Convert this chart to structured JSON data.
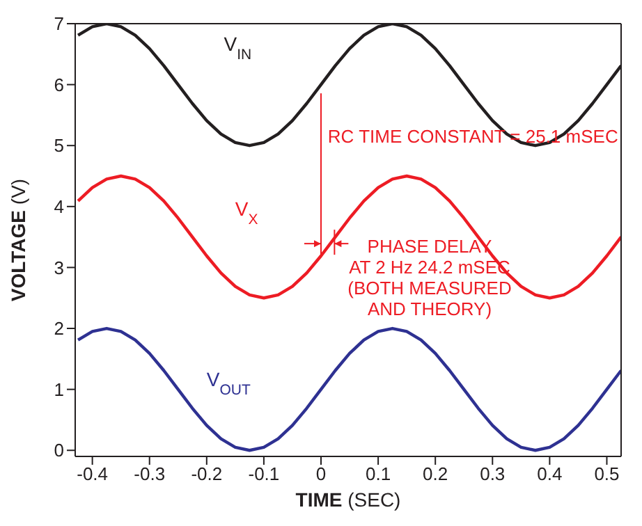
{
  "chart_data": {
    "type": "line",
    "xlabel": "TIME (SEC)",
    "ylabel": "VOLTAGE (V)",
    "xlim": [
      -0.43,
      0.525
    ],
    "xticks": [
      -0.4,
      -0.3,
      -0.2,
      -0.1,
      0,
      0.1,
      0.2,
      0.3,
      0.4,
      0.5
    ],
    "ylim": [
      -0.1,
      7
    ],
    "yticks": [
      0,
      1,
      2,
      3,
      4,
      5,
      6,
      7
    ],
    "grid": false,
    "legend": false,
    "marker": "none",
    "line_style": "solid",
    "x": [
      -0.425,
      -0.4,
      -0.375,
      -0.35,
      -0.325,
      -0.3,
      -0.275,
      -0.25,
      -0.225,
      -0.2,
      -0.175,
      -0.15,
      -0.125,
      -0.1,
      -0.075,
      -0.05,
      -0.025,
      0,
      0.025,
      0.05,
      0.075,
      0.1,
      0.125,
      0.15,
      0.175,
      0.2,
      0.225,
      0.25,
      0.275,
      0.3,
      0.325,
      0.35,
      0.375,
      0.4,
      0.425,
      0.45,
      0.475,
      0.5,
      0.525
    ],
    "series": [
      {
        "name": "V$_{IN}$",
        "color": "#231f20",
        "values": [
          6.81,
          6.95,
          7,
          6.95,
          6.81,
          6.59,
          6.31,
          6,
          5.69,
          5.41,
          5.19,
          5.05,
          5,
          5.05,
          5.19,
          5.41,
          5.69,
          6,
          6.31,
          6.59,
          6.81,
          6.95,
          7,
          6.95,
          6.81,
          6.59,
          6.31,
          6,
          5.69,
          5.41,
          5.19,
          5.05,
          5,
          5.05,
          5.19,
          5.41,
          5.69,
          6,
          6.31
        ]
      },
      {
        "name": "V$_{X}$",
        "color": "#ed1c24",
        "values": [
          4.09,
          4.31,
          4.45,
          4.5,
          4.45,
          4.31,
          4.09,
          3.81,
          3.5,
          3.19,
          2.91,
          2.69,
          2.55,
          2.5,
          2.55,
          2.69,
          2.91,
          3.19,
          3.5,
          3.81,
          4.09,
          4.31,
          4.45,
          4.5,
          4.45,
          4.31,
          4.09,
          3.81,
          3.5,
          3.19,
          2.91,
          2.69,
          2.55,
          2.5,
          2.55,
          2.69,
          2.91,
          3.19,
          3.5
        ]
      },
      {
        "name": "V$_{OUT}$",
        "color": "#2e3192",
        "values": [
          1.81,
          1.95,
          2,
          1.95,
          1.81,
          1.59,
          1.31,
          1,
          0.69,
          0.41,
          0.19,
          0.05,
          0,
          0.05,
          0.19,
          0.41,
          0.69,
          1,
          1.31,
          1.59,
          1.81,
          1.95,
          2,
          1.95,
          1.81,
          1.59,
          1.31,
          1,
          0.69,
          0.41,
          0.19,
          0.05,
          0,
          0.05,
          0.19,
          0.41,
          0.69,
          1,
          1.31
        ]
      }
    ],
    "annotations": [
      "RC TIME CONSTANT = 25.1 mSEC",
      {
        "text": "PHASE DELAY\nAT 2 Hz 24.2 mSEC\n(BOTH MEASURED\nAND THEORY)",
        "x": 0.0242,
        "y": 3.3
      }
    ]
  }
}
